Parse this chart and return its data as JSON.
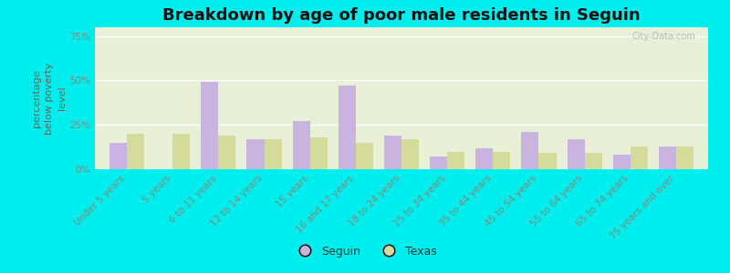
{
  "title": "Breakdown by age of poor male residents in Seguin",
  "ylabel": "percentage\nbelow poverty\nlevel",
  "categories": [
    "Under 5 years",
    "5 years",
    "6 to 11 years",
    "12 to 14 years",
    "15 years",
    "16 and 17 years",
    "18 to 24 years",
    "25 to 34 years",
    "35 to 44 years",
    "45 to 54 years",
    "55 to 64 years",
    "65 to 74 years",
    "75 years and over"
  ],
  "seguin_values": [
    15,
    0,
    49,
    17,
    27,
    47,
    19,
    7,
    12,
    21,
    17,
    8,
    13
  ],
  "texas_values": [
    20,
    20,
    19,
    17,
    18,
    15,
    17,
    10,
    10,
    9,
    9,
    13,
    13
  ],
  "seguin_color": "#c9b4e0",
  "texas_color": "#d4db9b",
  "background_color": "#00eeee",
  "plot_bg_color": "#e8f0d8",
  "ytick_color": "#888877",
  "xtick_color": "#888877",
  "ylabel_color": "#666655",
  "title_color": "#111111",
  "ylim": [
    0,
    80
  ],
  "yticks": [
    0,
    25,
    50,
    75
  ],
  "ytick_labels": [
    "0%",
    "25%",
    "50%",
    "75%"
  ],
  "title_fontsize": 13,
  "axis_label_fontsize": 8,
  "tick_fontsize": 7.5,
  "legend_fontsize": 9,
  "bar_width": 0.38
}
